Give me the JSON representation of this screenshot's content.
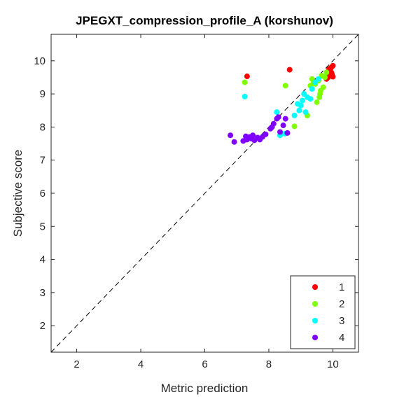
{
  "chart_data": {
    "type": "scatter",
    "title": "JPEGXT_compression_profile_A (korshunov)",
    "xlabel": "Metric prediction",
    "ylabel": "Subjective score",
    "xlim": [
      1.2,
      10.8
    ],
    "ylim": [
      1.2,
      10.8
    ],
    "xticks": [
      2,
      4,
      6,
      8,
      10
    ],
    "yticks": [
      2,
      3,
      4,
      5,
      6,
      7,
      8,
      9,
      10
    ],
    "grid": false,
    "legend_position": "bottom-right",
    "reference_line": "dashed diagonal y = x",
    "series": [
      {
        "name": "1",
        "color": "#ff0000",
        "x": [
          7.32,
          8.65,
          9.8,
          9.85,
          9.9,
          9.95,
          9.92,
          10.0,
          9.97,
          9.88,
          9.82,
          9.78,
          9.95,
          10.0
        ],
        "y": [
          9.53,
          9.73,
          9.45,
          9.5,
          9.55,
          9.65,
          9.7,
          9.85,
          9.6,
          9.75,
          9.62,
          9.48,
          9.8,
          9.52
        ]
      },
      {
        "name": "2",
        "color": "#80ff00",
        "x": [
          7.25,
          8.52,
          8.8,
          9.2,
          9.3,
          9.4,
          9.5,
          9.6,
          9.7,
          9.8,
          9.35,
          9.55,
          9.65,
          9.45,
          9.58,
          9.75,
          9.62
        ],
        "y": [
          9.35,
          9.25,
          8.02,
          8.35,
          9.25,
          9.35,
          8.75,
          9.0,
          9.2,
          9.65,
          9.45,
          9.4,
          9.55,
          9.3,
          8.9,
          9.5,
          9.1
        ],
        "annotations": []
      },
      {
        "name": "3",
        "color": "#00ffff",
        "x": [
          7.25,
          8.25,
          8.35,
          8.5,
          8.8,
          8.95,
          9.0,
          9.05,
          9.15,
          9.2,
          9.35,
          9.45,
          9.55,
          9.1,
          8.9,
          9.3
        ],
        "y": [
          8.92,
          8.45,
          7.75,
          7.8,
          8.35,
          8.5,
          8.65,
          8.8,
          8.45,
          8.9,
          9.15,
          9.35,
          9.45,
          9.0,
          8.7,
          8.85
        ]
      },
      {
        "name": "4",
        "color": "#8000ff",
        "x": [
          6.8,
          6.92,
          7.2,
          7.28,
          7.32,
          7.4,
          7.45,
          7.5,
          7.55,
          7.65,
          7.72,
          7.8,
          7.9,
          8.05,
          8.15,
          8.25,
          8.35,
          8.45,
          8.52,
          8.58,
          8.3,
          8.1
        ],
        "y": [
          7.75,
          7.55,
          7.58,
          7.72,
          7.62,
          7.7,
          7.65,
          7.75,
          7.6,
          7.68,
          7.62,
          7.7,
          7.78,
          7.95,
          8.1,
          8.25,
          7.85,
          8.05,
          8.25,
          7.82,
          8.3,
          8.0
        ]
      }
    ]
  }
}
